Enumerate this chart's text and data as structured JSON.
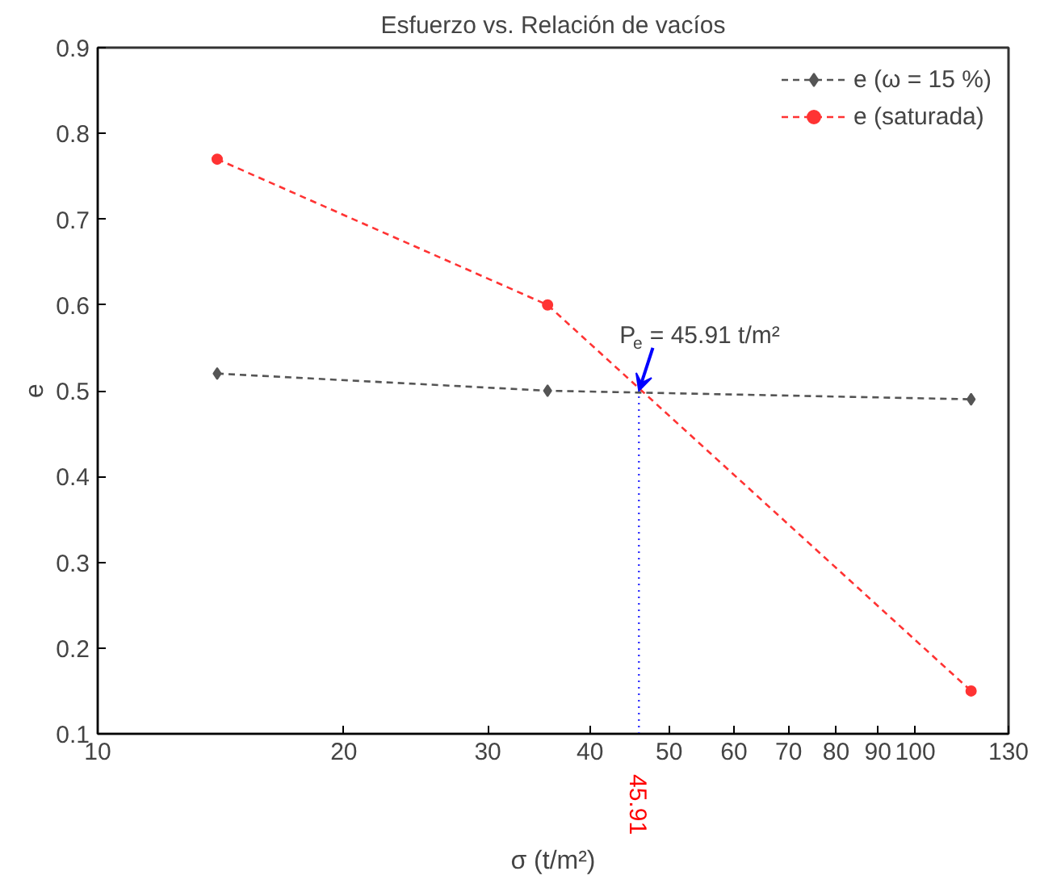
{
  "chart_data": {
    "type": "line",
    "title": "Esfuerzo vs. Relación de vacíos",
    "xlabel": "σ (t/m²)",
    "ylabel": "e",
    "x": [
      14,
      35.5,
      117
    ],
    "log": "x",
    "xlim": [
      10,
      130
    ],
    "xticks": [
      10,
      20,
      30,
      40,
      50,
      60,
      70,
      80,
      90,
      100,
      130
    ],
    "ylim": [
      0.1,
      0.9
    ],
    "yticks": [
      0.1,
      0.2,
      0.3,
      0.4,
      0.5,
      0.6,
      0.7,
      0.8,
      0.9
    ],
    "series": [
      {
        "name": "e (ω = 15 %)",
        "color": "#555555",
        "values": [
          0.52,
          0.5,
          0.49
        ],
        "marker": "diamond"
      },
      {
        "name": "e (saturada)",
        "color": "#ff3333",
        "values": [
          0.77,
          0.6,
          0.15
        ],
        "marker": "circle"
      }
    ],
    "line_style": "dashed",
    "grid": false,
    "legend": "top right",
    "ref_lines": [
      {
        "axis": "x",
        "value": 45.91,
        "label": "45.91",
        "color": "#3333ff",
        "line_style": "dotted"
      }
    ],
    "annotations": [
      {
        "text": "P$_{e}$ = 45.91 t/m²",
        "x": 45.91,
        "y": 0.5
      }
    ]
  }
}
